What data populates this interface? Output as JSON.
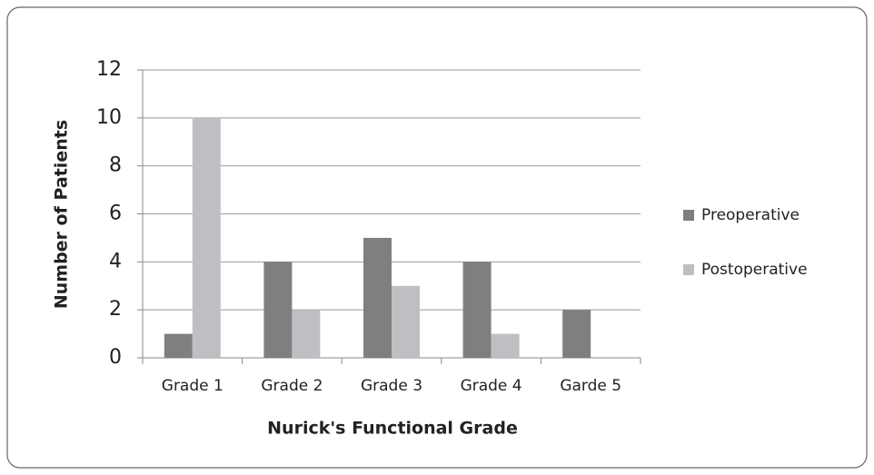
{
  "chart_data": {
    "type": "bar",
    "x_label": "Nurick's Functional Grade",
    "y_label": "Number of Patients",
    "categories": [
      "Grade 1",
      "Grade 2",
      "Grade 3",
      "Grade 4",
      "Garde 5"
    ],
    "series": [
      {
        "name": "Preoperative",
        "color": "#7f7f7f",
        "values": [
          1,
          4,
          5,
          4,
          2
        ]
      },
      {
        "name": "Postoperative",
        "color": "#bfbfc3",
        "values": [
          10,
          2,
          3,
          1,
          0
        ]
      }
    ],
    "ylim": [
      0,
      12
    ],
    "yticks": [
      0,
      2,
      4,
      6,
      8,
      10,
      12
    ],
    "grid": true,
    "legend": "right"
  }
}
